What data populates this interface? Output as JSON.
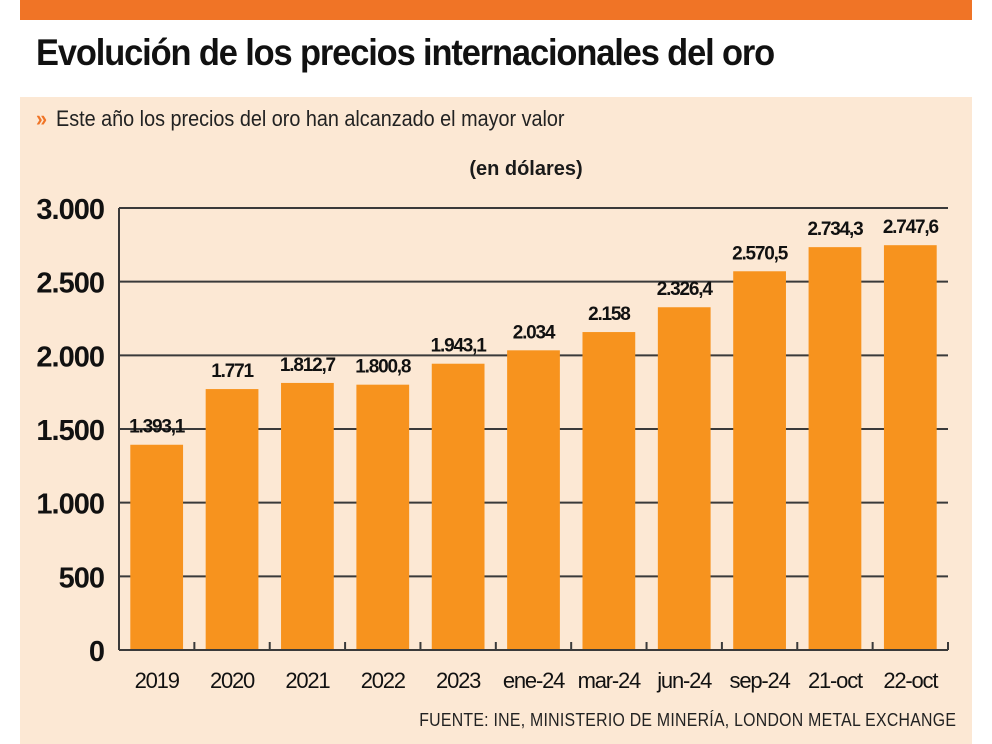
{
  "header": {
    "title": "Evolución de los precios internacionales del oro",
    "subtitle_marker": "»",
    "subtitle": "Este año los precios del oro han alcanzado el mayor valor"
  },
  "colors": {
    "accent": "#F07426",
    "panel_background": "#FCE8D4",
    "bar": "#F7931E",
    "grid": "#3a3a3a",
    "text": "#111111"
  },
  "chart_data": {
    "type": "bar",
    "title": "Evolución de los precios internacionales del oro",
    "subtitle": "Este año los precios del oro han alcanzado el mayor valor",
    "ylabel": "(en dólares)",
    "xlabel": "",
    "categories": [
      "2019",
      "2020",
      "2021",
      "2022",
      "2023",
      "ene-24",
      "mar-24",
      "jun-24",
      "sep-24",
      "21-oct",
      "22-oct"
    ],
    "values": [
      1393.1,
      1771,
      1812.7,
      1800.8,
      1943.1,
      2034,
      2158,
      2326.4,
      2570.5,
      2734.3,
      2747.6
    ],
    "data_labels": [
      "1.393,1",
      "1.771",
      "1.812,7",
      "1.800,8",
      "1.943,1",
      "2.034",
      "2.158",
      "2.326,4",
      "2.570,5",
      "2.734,3",
      "2.747,6"
    ],
    "ylim": [
      0,
      3000
    ],
    "yticks": [
      0,
      500,
      1000,
      1500,
      2000,
      2500,
      3000
    ],
    "ytick_labels": [
      "0",
      "500",
      "1.000",
      "1.500",
      "2.000",
      "2.500",
      "3.000"
    ],
    "grid": true,
    "legend": "none",
    "source": "FUENTE: INE, MINISTERIO DE MINERÍA, LONDON METAL EXCHANGE"
  }
}
